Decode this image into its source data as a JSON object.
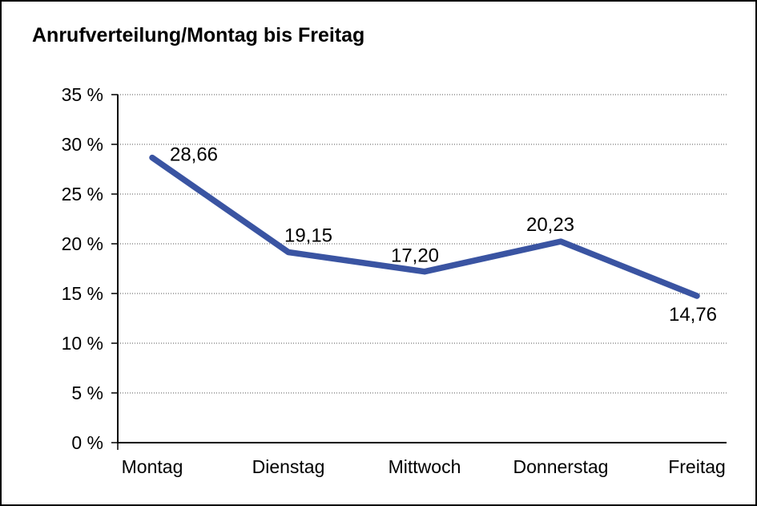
{
  "chart_data": {
    "type": "line",
    "title": "Anrufverteilung/Montag bis Freitag",
    "categories": [
      "Montag",
      "Dienstag",
      "Mittwoch",
      "Donnerstag",
      "Freitag"
    ],
    "values": [
      28.66,
      19.15,
      17.2,
      20.23,
      14.76
    ],
    "value_labels": [
      "28,66",
      "19,15",
      "17,20",
      "20,23",
      "14,76"
    ],
    "ytick_values": [
      0,
      5,
      10,
      15,
      20,
      25,
      30,
      35
    ],
    "ytick_labels": [
      "0 %",
      "5 %",
      "10 %",
      "15 %",
      "20 %",
      "25 %",
      "30 %",
      "35 %"
    ],
    "ylim": [
      0,
      35
    ],
    "xlabel": "",
    "ylabel": "",
    "legend": "none",
    "grid": "horizontal-dotted",
    "line_color": "#3A54A2",
    "line_width": 7.5,
    "frame_border_color": "#000000",
    "background_color": "#FFFFFF"
  }
}
